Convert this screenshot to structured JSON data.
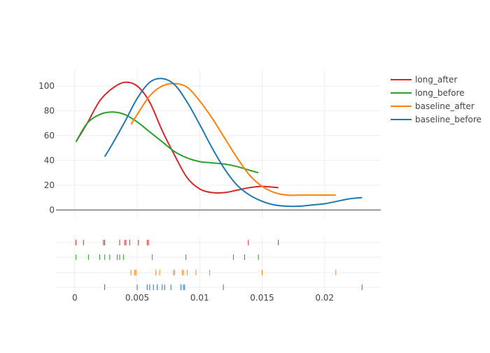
{
  "chart_data": {
    "type": "line",
    "subtype": "distplot",
    "grid": true,
    "legend_position": "top-right",
    "xlim": [
      -0.0015,
      0.0245
    ],
    "ylim": [
      -6,
      113
    ],
    "x_ticks": [
      {
        "value": 0,
        "label": "0"
      },
      {
        "value": 0.005,
        "label": "0.005"
      },
      {
        "value": 0.01,
        "label": "0.01"
      },
      {
        "value": 0.015,
        "label": "0.015"
      },
      {
        "value": 0.02,
        "label": "0.02"
      }
    ],
    "y_ticks": [
      {
        "value": 0,
        "label": "0"
      },
      {
        "value": 20,
        "label": "20"
      },
      {
        "value": 40,
        "label": "40"
      },
      {
        "value": 60,
        "label": "60"
      },
      {
        "value": 80,
        "label": "80"
      },
      {
        "value": 100,
        "label": "100"
      }
    ],
    "series": [
      {
        "name": "long_after",
        "color": "#d62728",
        "curve": [
          [
            0.0001,
            55
          ],
          [
            0.001,
            70
          ],
          [
            0.002,
            88
          ],
          [
            0.003,
            98
          ],
          [
            0.004,
            103
          ],
          [
            0.005,
            100
          ],
          [
            0.006,
            87
          ],
          [
            0.007,
            64
          ],
          [
            0.008,
            44
          ],
          [
            0.009,
            26
          ],
          [
            0.01,
            17
          ],
          [
            0.011,
            14
          ],
          [
            0.012,
            14
          ],
          [
            0.013,
            16
          ],
          [
            0.014,
            18
          ],
          [
            0.015,
            19
          ],
          [
            0.0163,
            18
          ]
        ],
        "rug": [
          0.0001,
          0.0007,
          0.0023,
          0.0024,
          0.0036,
          0.004,
          0.0041,
          0.0044,
          0.0051,
          0.0058,
          0.0059,
          0.0139,
          0.0163
        ]
      },
      {
        "name": "long_before",
        "color": "#2ca02c",
        "curve": [
          [
            0.0001,
            55
          ],
          [
            0.001,
            70
          ],
          [
            0.002,
            77
          ],
          [
            0.003,
            79
          ],
          [
            0.004,
            77
          ],
          [
            0.005,
            71
          ],
          [
            0.006,
            63
          ],
          [
            0.007,
            55
          ],
          [
            0.008,
            47
          ],
          [
            0.009,
            42
          ],
          [
            0.01,
            39
          ],
          [
            0.011,
            38
          ],
          [
            0.012,
            37
          ],
          [
            0.013,
            35
          ],
          [
            0.014,
            32
          ],
          [
            0.0147,
            30
          ]
        ],
        "rug": [
          0.0001,
          0.0011,
          0.002,
          0.0024,
          0.0028,
          0.0034,
          0.0036,
          0.0039,
          0.0062,
          0.0089,
          0.0127,
          0.0136,
          0.0147
        ]
      },
      {
        "name": "baseline_after",
        "color": "#ff7f0e",
        "curve": [
          [
            0.0045,
            69
          ],
          [
            0.005,
            77
          ],
          [
            0.006,
            92
          ],
          [
            0.007,
            100
          ],
          [
            0.008,
            102
          ],
          [
            0.009,
            99
          ],
          [
            0.01,
            88
          ],
          [
            0.011,
            74
          ],
          [
            0.012,
            58
          ],
          [
            0.013,
            42
          ],
          [
            0.014,
            28
          ],
          [
            0.015,
            19
          ],
          [
            0.016,
            14
          ],
          [
            0.017,
            12
          ],
          [
            0.018,
            12
          ],
          [
            0.019,
            12
          ],
          [
            0.0209,
            12
          ]
        ],
        "rug": [
          0.0045,
          0.0048,
          0.0049,
          0.0065,
          0.0068,
          0.0079,
          0.008,
          0.0086,
          0.0087,
          0.009,
          0.0097,
          0.0108,
          0.015,
          0.0209
        ]
      },
      {
        "name": "baseline_before",
        "color": "#1f77b4",
        "curve": [
          [
            0.0024,
            43
          ],
          [
            0.003,
            53
          ],
          [
            0.004,
            71
          ],
          [
            0.005,
            90
          ],
          [
            0.006,
            103
          ],
          [
            0.007,
            106
          ],
          [
            0.008,
            101
          ],
          [
            0.009,
            87
          ],
          [
            0.01,
            69
          ],
          [
            0.011,
            50
          ],
          [
            0.012,
            33
          ],
          [
            0.013,
            20
          ],
          [
            0.014,
            12
          ],
          [
            0.015,
            7
          ],
          [
            0.016,
            4
          ],
          [
            0.017,
            3
          ],
          [
            0.018,
            3
          ],
          [
            0.019,
            4
          ],
          [
            0.02,
            5
          ],
          [
            0.021,
            7
          ],
          [
            0.022,
            9
          ],
          [
            0.023,
            10
          ]
        ],
        "rug": [
          0.0024,
          0.005,
          0.0058,
          0.006,
          0.0063,
          0.0066,
          0.007,
          0.0072,
          0.0077,
          0.0085,
          0.0087,
          0.0088,
          0.0119,
          0.023
        ]
      }
    ]
  }
}
